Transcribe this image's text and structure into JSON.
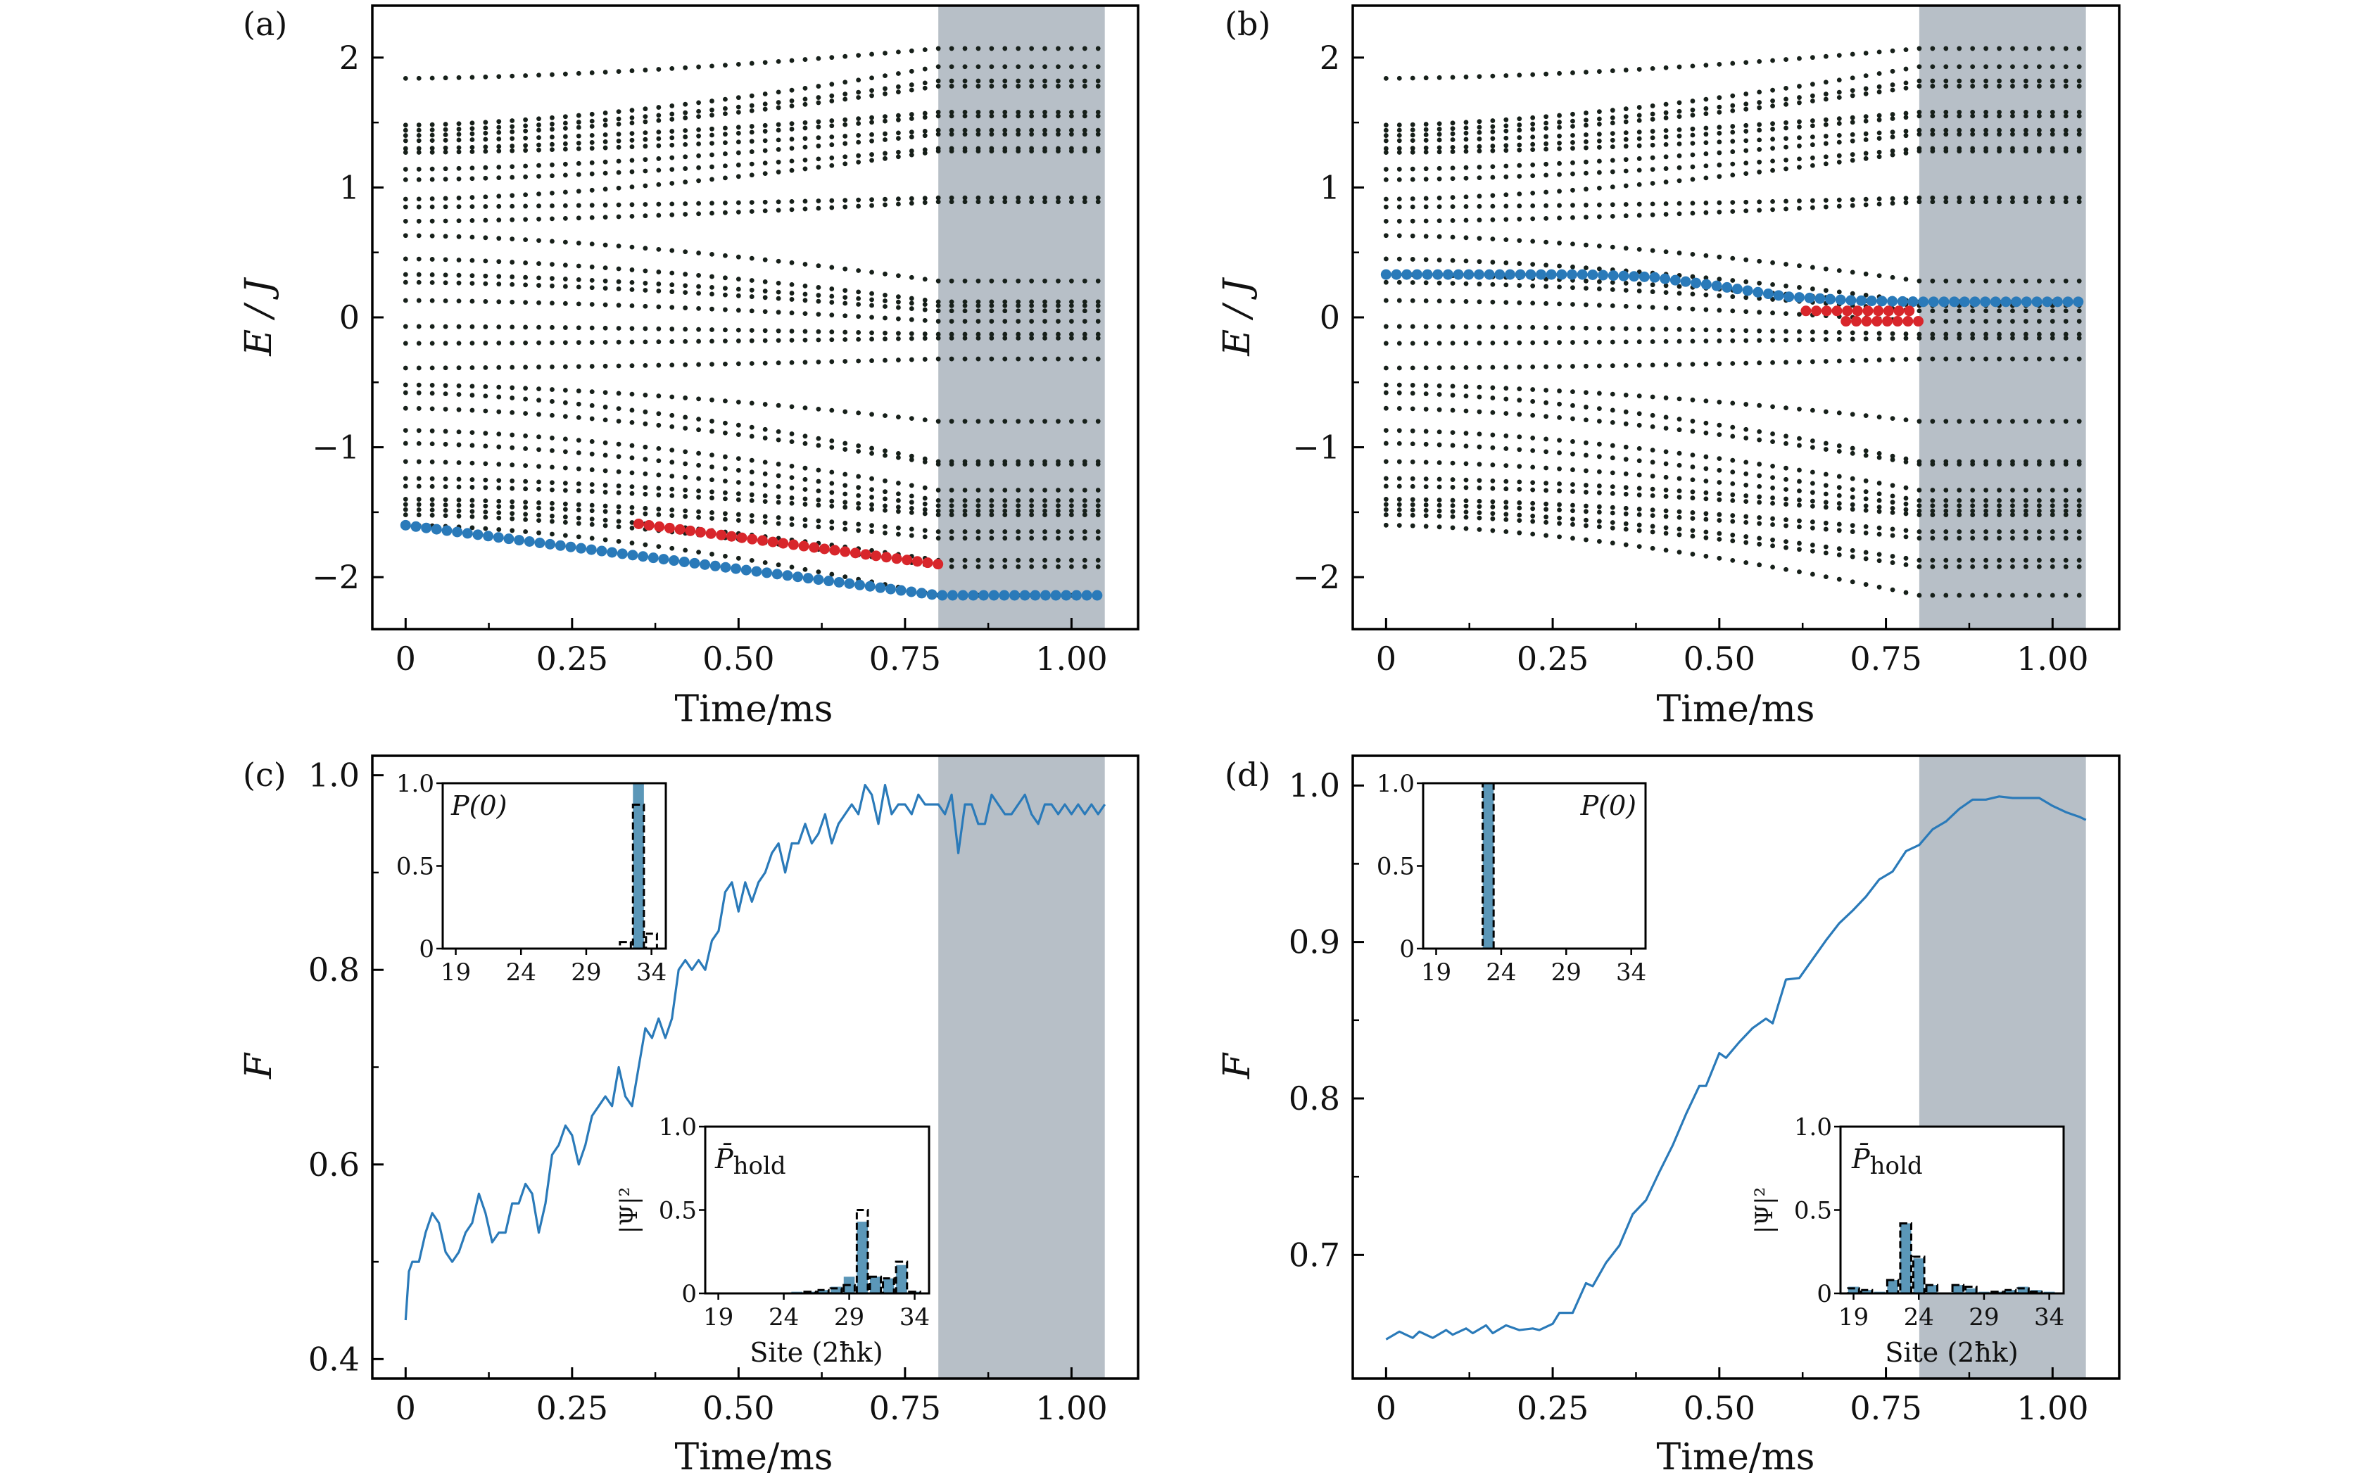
{
  "colors": {
    "highlight_blue": "#2a7ab9",
    "highlight_red": "#d8262b",
    "levels": "#17201a",
    "hold_shade": "#b7bfc7",
    "bar_fill": "#5b97b8",
    "line": "#2a7ab9"
  },
  "panels": {
    "a": {
      "label": "(a)",
      "ylabel": "E / J",
      "xlabel": "Time/ms"
    },
    "b": {
      "label": "(b)",
      "ylabel": "E / J",
      "xlabel": "Time/ms"
    },
    "c": {
      "label": "(c)",
      "ylabel": "F",
      "xlabel": "Time/ms",
      "inset_top_label": "P(0)",
      "inset_bottom_label": "P̄",
      "inset_bottom_label_sub": "hold",
      "inset_ylabel": "|Ψ|²",
      "inset_xlabel": "Site (2ħk)"
    },
    "d": {
      "label": "(d)",
      "ylabel": "F",
      "xlabel": "Time/ms",
      "inset_top_label": "P(0)",
      "inset_bottom_label": "P̄",
      "inset_bottom_label_sub": "hold",
      "inset_ylabel": "|Ψ|²",
      "inset_xlabel": "Site (2ħk)"
    }
  },
  "chart_data": [
    {
      "panel": "a",
      "type": "scatter",
      "xlabel": "Time/ms",
      "ylabel": "E / J",
      "xlim": [
        -0.05,
        1.1
      ],
      "ylim": [
        -2.4,
        2.4
      ],
      "xticks": [
        0,
        0.25,
        0.5,
        0.75,
        1.0
      ],
      "xtick_labels": [
        "0",
        "0.25",
        "0.50",
        "0.75",
        "1.00"
      ],
      "yticks": [
        -2,
        -1,
        0,
        1,
        2
      ],
      "ytick_labels": [
        "−2",
        "−1",
        "0",
        "1",
        "2"
      ],
      "shaded_region": [
        0.8,
        1.05
      ],
      "levels_start": [
        -1.6,
        -1.52,
        -1.48,
        -1.44,
        -1.4,
        -1.3,
        -1.24,
        -1.11,
        -0.97,
        -0.87,
        -0.7,
        -0.58,
        -0.52,
        -0.39,
        -0.2,
        -0.07,
        0.13,
        0.27,
        0.33,
        0.45,
        0.63,
        0.74,
        0.85,
        0.91,
        1.06,
        1.14,
        1.27,
        1.3,
        1.36,
        1.4,
        1.44,
        1.48,
        1.84
      ],
      "levels_end": [
        -2.14,
        -1.92,
        -1.87,
        -1.7,
        -1.65,
        -1.52,
        -1.49,
        -1.45,
        -1.41,
        -1.33,
        -1.13,
        -1.11,
        -0.8,
        -0.32,
        -0.16,
        -0.13,
        -0.03,
        0.05,
        0.09,
        0.12,
        0.28,
        0.89,
        0.92,
        1.28,
        1.3,
        1.41,
        1.44,
        1.55,
        1.58,
        1.78,
        1.82,
        1.93,
        2.07
      ],
      "ramp_end": 0.8,
      "t_end": 1.05,
      "highlights": [
        {
          "color": "blue",
          "points": [
            [
              0,
              -1.6
            ],
            [
              0.8,
              -2.14
            ],
            [
              1.05,
              -2.14
            ]
          ]
        },
        {
          "color": "red",
          "points": [
            [
              0.35,
              -1.59
            ],
            [
              0.8,
              -1.9
            ]
          ]
        }
      ]
    },
    {
      "panel": "b",
      "type": "scatter",
      "xlabel": "Time/ms",
      "ylabel": "E / J",
      "xlim": [
        -0.05,
        1.1
      ],
      "ylim": [
        -2.4,
        2.4
      ],
      "xticks": [
        0,
        0.25,
        0.5,
        0.75,
        1.0
      ],
      "xtick_labels": [
        "0",
        "0.25",
        "0.50",
        "0.75",
        "1.00"
      ],
      "yticks": [
        -2,
        -1,
        0,
        1,
        2
      ],
      "ytick_labels": [
        "−2",
        "−1",
        "0",
        "1",
        "2"
      ],
      "shaded_region": [
        0.8,
        1.05
      ],
      "levels_start": [
        -1.6,
        -1.52,
        -1.48,
        -1.44,
        -1.4,
        -1.3,
        -1.24,
        -1.11,
        -0.97,
        -0.87,
        -0.7,
        -0.58,
        -0.52,
        -0.39,
        -0.2,
        -0.07,
        0.13,
        0.27,
        0.33,
        0.45,
        0.63,
        0.74,
        0.85,
        0.91,
        1.06,
        1.14,
        1.27,
        1.3,
        1.36,
        1.4,
        1.44,
        1.48,
        1.84
      ],
      "levels_end": [
        -2.14,
        -1.92,
        -1.87,
        -1.7,
        -1.65,
        -1.52,
        -1.49,
        -1.45,
        -1.41,
        -1.33,
        -1.13,
        -1.11,
        -0.8,
        -0.32,
        -0.16,
        -0.13,
        -0.03,
        0.05,
        0.09,
        0.12,
        0.28,
        0.89,
        0.92,
        1.28,
        1.3,
        1.41,
        1.44,
        1.55,
        1.58,
        1.78,
        1.82,
        1.93,
        2.07
      ],
      "ramp_end": 0.8,
      "t_end": 1.05,
      "highlights": [
        {
          "color": "blue",
          "points": [
            [
              0,
              0.33
            ],
            [
              0.3,
              0.33
            ],
            [
              0.4,
              0.31
            ],
            [
              0.5,
              0.24
            ],
            [
              0.6,
              0.16
            ],
            [
              0.7,
              0.13
            ],
            [
              0.8,
              0.12
            ],
            [
              1.05,
              0.12
            ]
          ]
        },
        {
          "color": "red",
          "points": [
            [
              0.63,
              0.05
            ],
            [
              0.8,
              0.05
            ]
          ]
        },
        {
          "color": "red",
          "points": [
            [
              0.69,
              -0.03
            ],
            [
              0.8,
              -0.03
            ]
          ]
        }
      ]
    },
    {
      "panel": "c",
      "type": "line",
      "xlabel": "Time/ms",
      "ylabel": "F",
      "xlim": [
        -0.05,
        1.1
      ],
      "ylim": [
        0.38,
        1.02
      ],
      "xticks": [
        0,
        0.25,
        0.5,
        0.75,
        1.0
      ],
      "xtick_labels": [
        "0",
        "0.25",
        "0.50",
        "0.75",
        "1.00"
      ],
      "yticks": [
        0.4,
        0.6,
        0.8,
        1.0
      ],
      "ytick_labels": [
        "0.4",
        "0.6",
        "0.8",
        "1.0"
      ],
      "shaded_region": [
        0.8,
        1.05
      ],
      "x": [
        0,
        0.005,
        0.01,
        0.02,
        0.03,
        0.04,
        0.05,
        0.06,
        0.07,
        0.08,
        0.09,
        0.1,
        0.11,
        0.12,
        0.13,
        0.14,
        0.15,
        0.16,
        0.17,
        0.18,
        0.19,
        0.2,
        0.21,
        0.22,
        0.23,
        0.24,
        0.25,
        0.26,
        0.27,
        0.28,
        0.29,
        0.3,
        0.31,
        0.32,
        0.33,
        0.34,
        0.35,
        0.36,
        0.37,
        0.38,
        0.39,
        0.4,
        0.41,
        0.42,
        0.43,
        0.44,
        0.45,
        0.46,
        0.47,
        0.48,
        0.49,
        0.5,
        0.51,
        0.52,
        0.53,
        0.54,
        0.55,
        0.56,
        0.57,
        0.58,
        0.59,
        0.6,
        0.61,
        0.62,
        0.63,
        0.64,
        0.65,
        0.66,
        0.67,
        0.68,
        0.69,
        0.7,
        0.71,
        0.72,
        0.73,
        0.74,
        0.75,
        0.76,
        0.77,
        0.78,
        0.79,
        0.8,
        0.81,
        0.82,
        0.83,
        0.84,
        0.85,
        0.86,
        0.87,
        0.88,
        0.89,
        0.9,
        0.91,
        0.92,
        0.93,
        0.94,
        0.95,
        0.96,
        0.97,
        0.98,
        0.99,
        1.0,
        1.01,
        1.02,
        1.03,
        1.04,
        1.05
      ],
      "y": [
        0.44,
        0.49,
        0.5,
        0.5,
        0.53,
        0.55,
        0.54,
        0.51,
        0.5,
        0.51,
        0.53,
        0.54,
        0.57,
        0.55,
        0.52,
        0.53,
        0.53,
        0.56,
        0.56,
        0.58,
        0.57,
        0.53,
        0.56,
        0.61,
        0.62,
        0.64,
        0.63,
        0.6,
        0.62,
        0.65,
        0.66,
        0.67,
        0.66,
        0.7,
        0.67,
        0.66,
        0.7,
        0.74,
        0.73,
        0.75,
        0.73,
        0.75,
        0.8,
        0.81,
        0.8,
        0.81,
        0.8,
        0.83,
        0.84,
        0.88,
        0.89,
        0.86,
        0.89,
        0.87,
        0.89,
        0.9,
        0.92,
        0.93,
        0.9,
        0.93,
        0.93,
        0.95,
        0.93,
        0.94,
        0.96,
        0.93,
        0.95,
        0.96,
        0.97,
        0.96,
        0.99,
        0.98,
        0.95,
        0.99,
        0.96,
        0.97,
        0.97,
        0.96,
        0.98,
        0.97,
        0.97,
        0.97,
        0.96,
        0.98,
        0.92,
        0.97,
        0.97,
        0.95,
        0.95,
        0.98,
        0.97,
        0.96,
        0.96,
        0.97,
        0.98,
        0.96,
        0.95,
        0.97,
        0.97,
        0.96,
        0.97,
        0.96,
        0.97,
        0.96,
        0.97,
        0.96,
        0.97
      ],
      "insets": [
        {
          "type": "bar",
          "label": "P(0)",
          "xlim": [
            18,
            35.1
          ],
          "ylim": [
            0,
            1
          ],
          "xticks": [
            19,
            24,
            29,
            34
          ],
          "yticks": [
            0,
            0.5,
            1.0
          ],
          "ytick_labels": [
            "0",
            "0.5",
            "1.0"
          ],
          "filled": {
            "sites": [
              33
            ],
            "values": [
              1.0
            ]
          },
          "dashed": {
            "sites": [
              32,
              33,
              34
            ],
            "values": [
              0.04,
              0.87,
              0.09
            ]
          }
        },
        {
          "type": "bar",
          "label": "P̄hold",
          "ylabel": "|Ψ|²",
          "xlabel": "Site (2ħk)",
          "xlim": [
            18,
            35.1
          ],
          "ylim": [
            0,
            1
          ],
          "xticks": [
            19,
            24,
            29,
            34
          ],
          "yticks": [
            0,
            0.5,
            1.0
          ],
          "ytick_labels": [
            "0",
            "0.5",
            "1.0"
          ],
          "filled": {
            "sites": [
              25,
              26,
              27,
              28,
              29,
              30,
              31,
              32,
              33,
              34
            ],
            "values": [
              0.01,
              0.01,
              0.02,
              0.04,
              0.1,
              0.43,
              0.1,
              0.09,
              0.17,
              0.01
            ]
          },
          "dashed": {
            "sites": [
              26,
              27,
              28,
              29,
              30,
              31,
              32,
              33,
              34
            ],
            "values": [
              0.01,
              0.02,
              0.03,
              0.05,
              0.5,
              0.1,
              0.09,
              0.19,
              0.01
            ]
          }
        }
      ]
    },
    {
      "panel": "d",
      "type": "line",
      "xlabel": "Time/ms",
      "ylabel": "F",
      "xlim": [
        -0.05,
        1.1
      ],
      "ylim": [
        0.621,
        1.019
      ],
      "xticks": [
        0,
        0.25,
        0.5,
        0.75,
        1.0
      ],
      "xtick_labels": [
        "0",
        "0.25",
        "0.50",
        "0.75",
        "1.00"
      ],
      "yticks": [
        0.7,
        0.8,
        0.9,
        1.0
      ],
      "ytick_labels": [
        "0.7",
        "0.8",
        "0.9",
        "1.0"
      ],
      "shaded_region": [
        0.8,
        1.05
      ],
      "x": [
        0,
        0.02,
        0.04,
        0.05,
        0.07,
        0.09,
        0.1,
        0.12,
        0.13,
        0.15,
        0.16,
        0.18,
        0.2,
        0.22,
        0.23,
        0.25,
        0.26,
        0.28,
        0.3,
        0.31,
        0.33,
        0.35,
        0.37,
        0.39,
        0.41,
        0.43,
        0.45,
        0.47,
        0.48,
        0.5,
        0.51,
        0.53,
        0.55,
        0.57,
        0.58,
        0.6,
        0.62,
        0.64,
        0.66,
        0.68,
        0.7,
        0.72,
        0.74,
        0.76,
        0.78,
        0.8,
        0.82,
        0.84,
        0.86,
        0.88,
        0.9,
        0.92,
        0.94,
        0.96,
        0.98,
        1.0,
        1.02,
        1.04,
        1.05
      ],
      "y": [
        0.646,
        0.651,
        0.647,
        0.651,
        0.647,
        0.652,
        0.649,
        0.653,
        0.65,
        0.655,
        0.65,
        0.655,
        0.652,
        0.653,
        0.652,
        0.656,
        0.663,
        0.663,
        0.682,
        0.68,
        0.695,
        0.706,
        0.726,
        0.735,
        0.753,
        0.77,
        0.79,
        0.808,
        0.808,
        0.829,
        0.826,
        0.836,
        0.845,
        0.851,
        0.848,
        0.876,
        0.877,
        0.889,
        0.901,
        0.912,
        0.92,
        0.929,
        0.94,
        0.945,
        0.958,
        0.962,
        0.972,
        0.977,
        0.985,
        0.991,
        0.991,
        0.993,
        0.992,
        0.992,
        0.992,
        0.987,
        0.983,
        0.98,
        0.978
      ],
      "insets": [
        {
          "type": "bar",
          "label": "P(0)",
          "xlim": [
            18,
            35.1
          ],
          "ylim": [
            0,
            1
          ],
          "xticks": [
            19,
            24,
            29,
            34
          ],
          "yticks": [
            0,
            0.5,
            1.0
          ],
          "ytick_labels": [
            "0",
            "0.5",
            "1.0"
          ],
          "filled": {
            "sites": [
              23
            ],
            "values": [
              1.0
            ]
          },
          "dashed": {
            "sites": [
              23
            ],
            "values": [
              1.0
            ]
          }
        },
        {
          "type": "bar",
          "label": "P̄hold",
          "ylabel": "|Ψ|²",
          "xlabel": "Site (2ħk)",
          "xlim": [
            18,
            35.1
          ],
          "ylim": [
            0,
            1
          ],
          "xticks": [
            19,
            24,
            29,
            34
          ],
          "yticks": [
            0,
            0.5,
            1.0
          ],
          "ytick_labels": [
            "0",
            "0.5",
            "1.0"
          ],
          "filled": {
            "sites": [
              19,
              20,
              21,
              22,
              23,
              24,
              25,
              27,
              28,
              29,
              30,
              31,
              32,
              33,
              34
            ],
            "values": [
              0.04,
              0.02,
              0.01,
              0.08,
              0.42,
              0.21,
              0.05,
              0.05,
              0.03,
              0.01,
              0.01,
              0.02,
              0.04,
              0.02,
              0.01
            ]
          },
          "dashed": {
            "sites": [
              19,
              20,
              22,
              23,
              24,
              25,
              27,
              28,
              30,
              31,
              32,
              33
            ],
            "values": [
              0.03,
              0.02,
              0.08,
              0.42,
              0.22,
              0.05,
              0.05,
              0.04,
              0.01,
              0.02,
              0.03,
              0.01
            ]
          }
        }
      ]
    }
  ]
}
